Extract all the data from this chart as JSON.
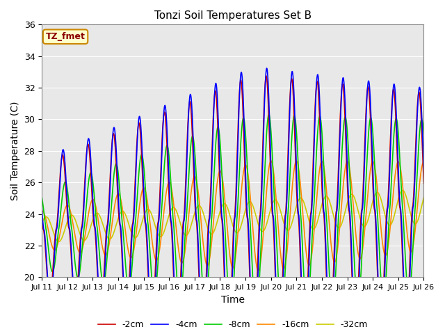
{
  "title": "Tonzi Soil Temperatures Set B",
  "xlabel": "Time",
  "ylabel": "Soil Temperature (C)",
  "ylim": [
    20,
    36
  ],
  "xlim": [
    0,
    360
  ],
  "annotation": "TZ_fmet",
  "legend": [
    "-2cm",
    "-4cm",
    "-8cm",
    "-16cm",
    "-32cm"
  ],
  "colors": {
    "-2cm": "#cc0000",
    "-4cm": "#0000ff",
    "-8cm": "#00cc00",
    "-16cm": "#ff8800",
    "-32cm": "#cccc00"
  },
  "xtick_labels": [
    "Jul 11",
    "Jul 12",
    "Jul 13",
    "Jul 14",
    "Jul 15",
    "Jul 16",
    "Jul 17",
    "Jul 18",
    "Jul 19",
    "Jul 20",
    "Jul 21",
    "Jul 22",
    "Jul 23",
    "Jul 24",
    "Jul 25",
    "Jul 26"
  ],
  "xtick_positions": [
    0,
    24,
    48,
    72,
    96,
    120,
    144,
    168,
    192,
    216,
    240,
    264,
    288,
    312,
    336,
    360
  ],
  "ytick_labels": [
    "20",
    "22",
    "24",
    "26",
    "28",
    "30",
    "32",
    "34",
    "36"
  ],
  "ytick_positions": [
    20,
    22,
    24,
    26,
    28,
    30,
    32,
    34,
    36
  ],
  "background_color": "#e8e8e8",
  "grid_color": "white",
  "line_width": 1.2
}
